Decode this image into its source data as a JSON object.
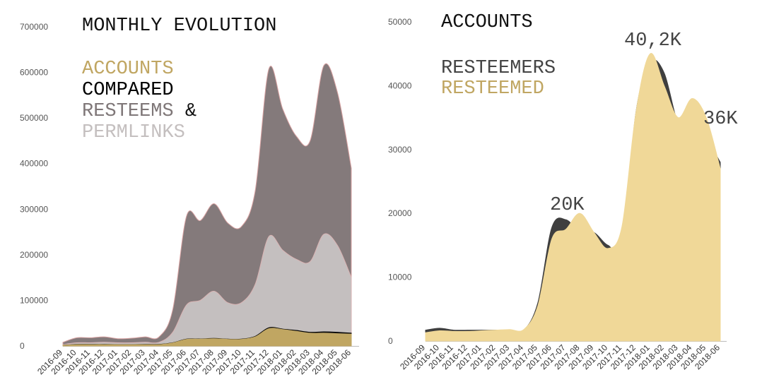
{
  "chart_data": [
    {
      "type": "area",
      "title": "MONTHLY EVOLUTION",
      "legend_lines": [
        {
          "text": "ACCOUNTS",
          "color": "#c0a662"
        },
        {
          "text": "COMPARED",
          "color": "#000000"
        },
        {
          "text": "RESTEEMS",
          "color": "#7f7778",
          "suffix": " &"
        },
        {
          "text": "PERMLINKS",
          "color": "#c4bfbf"
        }
      ],
      "yticks": [
        0,
        100000,
        200000,
        300000,
        400000,
        500000,
        600000,
        700000
      ],
      "ylim": [
        0,
        700000
      ],
      "x": [
        "2016-09",
        "2016-10",
        "2016-11",
        "2016-12",
        "2017-01",
        "2017-02",
        "2017-03",
        "2017-04",
        "2017-05",
        "2017-06",
        "2017-07",
        "2017-08",
        "2017-09",
        "2017-10",
        "2017-11",
        "2017-12",
        "2018-01",
        "2018-02",
        "2018-03",
        "2018-04",
        "2018-05",
        "2018-06"
      ],
      "series": [
        {
          "name": "RESTEEMS",
          "color": "#847a7b",
          "edge": "#d9a3a3",
          "values": [
            8000,
            18000,
            18000,
            20000,
            16000,
            17000,
            20000,
            20000,
            80000,
            285000,
            275000,
            312000,
            270000,
            262000,
            340000,
            608000,
            520000,
            460000,
            450000,
            615000,
            555000,
            390000
          ]
        },
        {
          "name": "PERMLINKS",
          "color": "#c4bfbf",
          "edge": "#d9b3b3",
          "values": [
            3000,
            7000,
            7000,
            8000,
            7000,
            7000,
            8000,
            8000,
            30000,
            90000,
            100000,
            120000,
            95000,
            95000,
            135000,
            240000,
            210000,
            190000,
            185000,
            245000,
            220000,
            150000
          ]
        },
        {
          "name": "COMPARED",
          "color": "#1a1a1a",
          "edge": "#000000",
          "values": [
            1500,
            3500,
            3500,
            3500,
            3000,
            3000,
            3500,
            3500,
            7000,
            15000,
            15500,
            16500,
            15000,
            15000,
            21000,
            40000,
            37000,
            34000,
            30000,
            31000,
            30000,
            28000
          ]
        },
        {
          "name": "ACCOUNTS",
          "color": "#c0a662",
          "edge": "#c0a662",
          "values": [
            1500,
            3000,
            3000,
            3000,
            2800,
            2800,
            3000,
            3000,
            6500,
            14500,
            15000,
            16000,
            14500,
            14500,
            20000,
            38000,
            36000,
            32000,
            28000,
            28000,
            27000,
            26000
          ]
        }
      ]
    },
    {
      "type": "area",
      "title": "ACCOUNTS",
      "legend_lines": [
        {
          "text": "RESTEEMERS",
          "color": "#444444"
        },
        {
          "text": "RESTEEMED",
          "color": "#c0a662"
        }
      ],
      "yticks": [
        0,
        10000,
        20000,
        30000,
        40000,
        50000
      ],
      "ylim": [
        0,
        50000
      ],
      "x": [
        "2016-09",
        "2016-10",
        "2016-11",
        "2016-12",
        "2017-01",
        "2017-02",
        "2017-03",
        "2017-04",
        "2017-05",
        "2017-06",
        "2017-07",
        "2017-08",
        "2017-09",
        "2017-10",
        "2017-11",
        "2017-12",
        "2018-01",
        "2018-02",
        "2018-03",
        "2018-04",
        "2018-05",
        "2018-06"
      ],
      "annotations": [
        "20K",
        "40,2K",
        "36K"
      ],
      "series": [
        {
          "name": "RESTEEMERS",
          "color": "#3f3f3f",
          "values": [
            1700,
            2000,
            1700,
            1700,
            1700,
            1700,
            1700,
            1700,
            6000,
            17800,
            19000,
            17000,
            17000,
            15000,
            15500,
            36000,
            43700,
            42000,
            34000,
            32000,
            31500,
            28000
          ]
        },
        {
          "name": "RESTEEMED",
          "color": "#f0d898",
          "values": [
            1300,
            1600,
            1500,
            1500,
            1600,
            1700,
            1800,
            1800,
            5500,
            16000,
            17500,
            20000,
            17000,
            14500,
            18000,
            36000,
            45000,
            40000,
            35000,
            38000,
            35000,
            27000
          ]
        }
      ]
    }
  ]
}
